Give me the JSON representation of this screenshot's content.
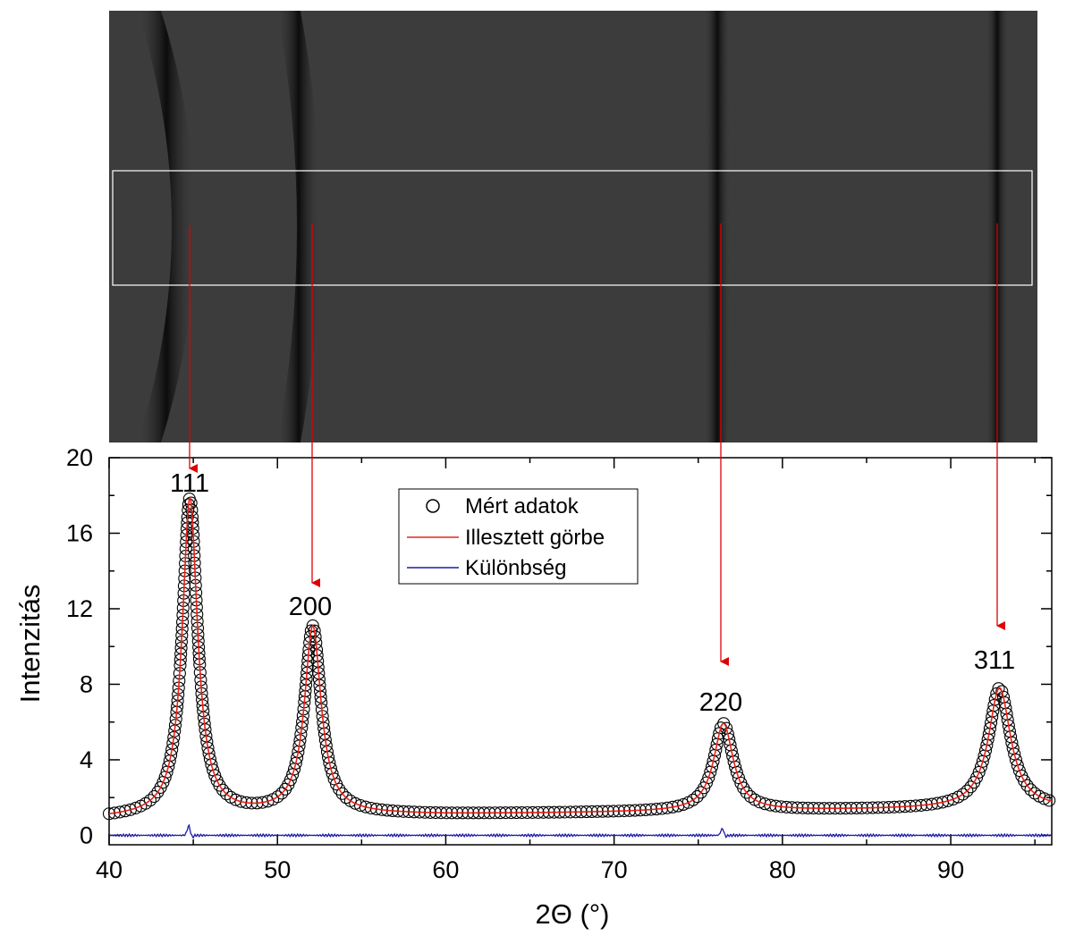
{
  "chart_data": {
    "type": "line",
    "title": "",
    "xlabel": "2Θ (°)",
    "ylabel": "Intenzitás",
    "xlim": [
      40,
      96
    ],
    "ylim": [
      -0.5,
      20
    ],
    "x_ticks": [
      40,
      50,
      60,
      70,
      80,
      90
    ],
    "y_ticks": [
      0,
      4,
      8,
      12,
      16,
      20
    ],
    "grid": false,
    "legend_position": "top-center",
    "peaks": [
      {
        "label": "111",
        "position": 44.8,
        "height": 17.8
      },
      {
        "label": "200",
        "position": 52.1,
        "height": 11.0
      },
      {
        "label": "220",
        "position": 76.5,
        "height": 5.9
      },
      {
        "label": "311",
        "position": 92.9,
        "height": 7.8
      }
    ],
    "series": [
      {
        "name": "Mért adatok",
        "kind": "scatter",
        "marker": "open-circle",
        "color": "#000000"
      },
      {
        "name": "Illesztett görbe",
        "kind": "line",
        "color": "#e8231b"
      },
      {
        "name": "Különbség",
        "kind": "line",
        "color": "#1a1aa8"
      }
    ],
    "background_model": {
      "x": [
        40,
        50,
        60,
        70,
        80,
        90,
        96
      ],
      "y": [
        0.9,
        1.1,
        1.1,
        1.2,
        1.3,
        1.4,
        1.4
      ]
    },
    "peak_width": [
      0.55,
      0.6,
      0.7,
      0.8
    ],
    "difference_features": [
      {
        "x": 44.8,
        "y": 0.35
      },
      {
        "x": 76.5,
        "y": 0.25
      }
    ]
  },
  "detector_image": {
    "ring_positions": [
      44.8,
      52.1,
      76.5,
      92.9
    ],
    "background_color": "#3c3c3c",
    "ring_color": "#0c0c0c",
    "box_color": "#ffffff"
  },
  "colors": {
    "arrow": "#e00000",
    "fit": "#e8231b",
    "difference": "#1a1aa8",
    "measured": "#000000"
  }
}
